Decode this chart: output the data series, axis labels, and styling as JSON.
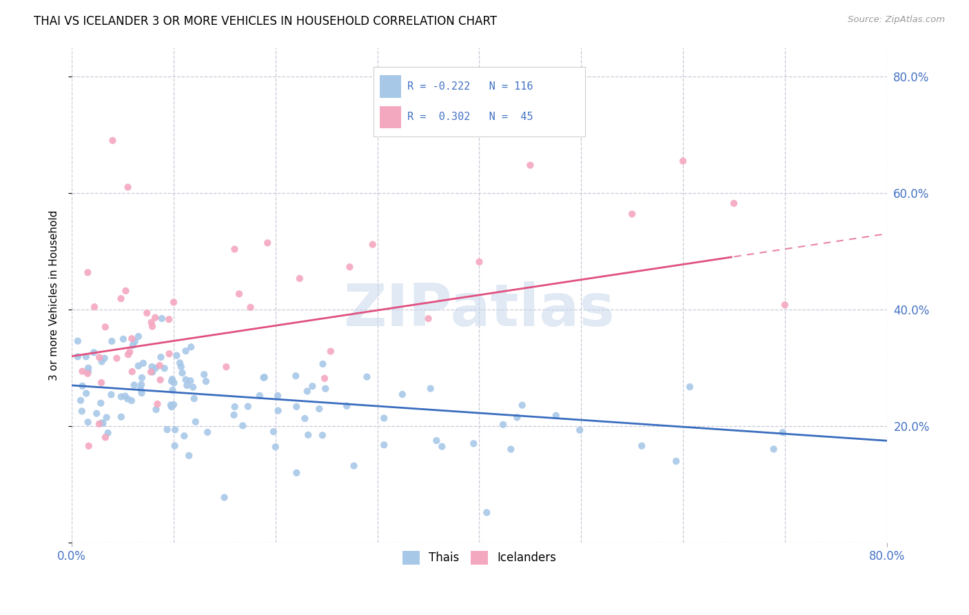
{
  "title": "THAI VS ICELANDER 3 OR MORE VEHICLES IN HOUSEHOLD CORRELATION CHART",
  "source": "Source: ZipAtlas.com",
  "ylabel": "3 or more Vehicles in Household",
  "xlim": [
    0.0,
    0.8
  ],
  "ylim": [
    0.0,
    0.85
  ],
  "thai_color": "#a8c8e8",
  "icelander_color": "#f4a8c0",
  "thai_line_color": "#3a6dbf",
  "icelander_line_color": "#e05080",
  "watermark": "ZIPatlas",
  "background_color": "#ffffff",
  "grid_color": "#c8c8d8",
  "title_fontsize": 12,
  "axis_label_color": "#4472c4",
  "thai_line_start_y": 0.27,
  "thai_line_end_y": 0.175,
  "icel_line_start_y": 0.32,
  "icel_line_end_y": 0.53,
  "icel_line_solid_end_x": 0.65
}
